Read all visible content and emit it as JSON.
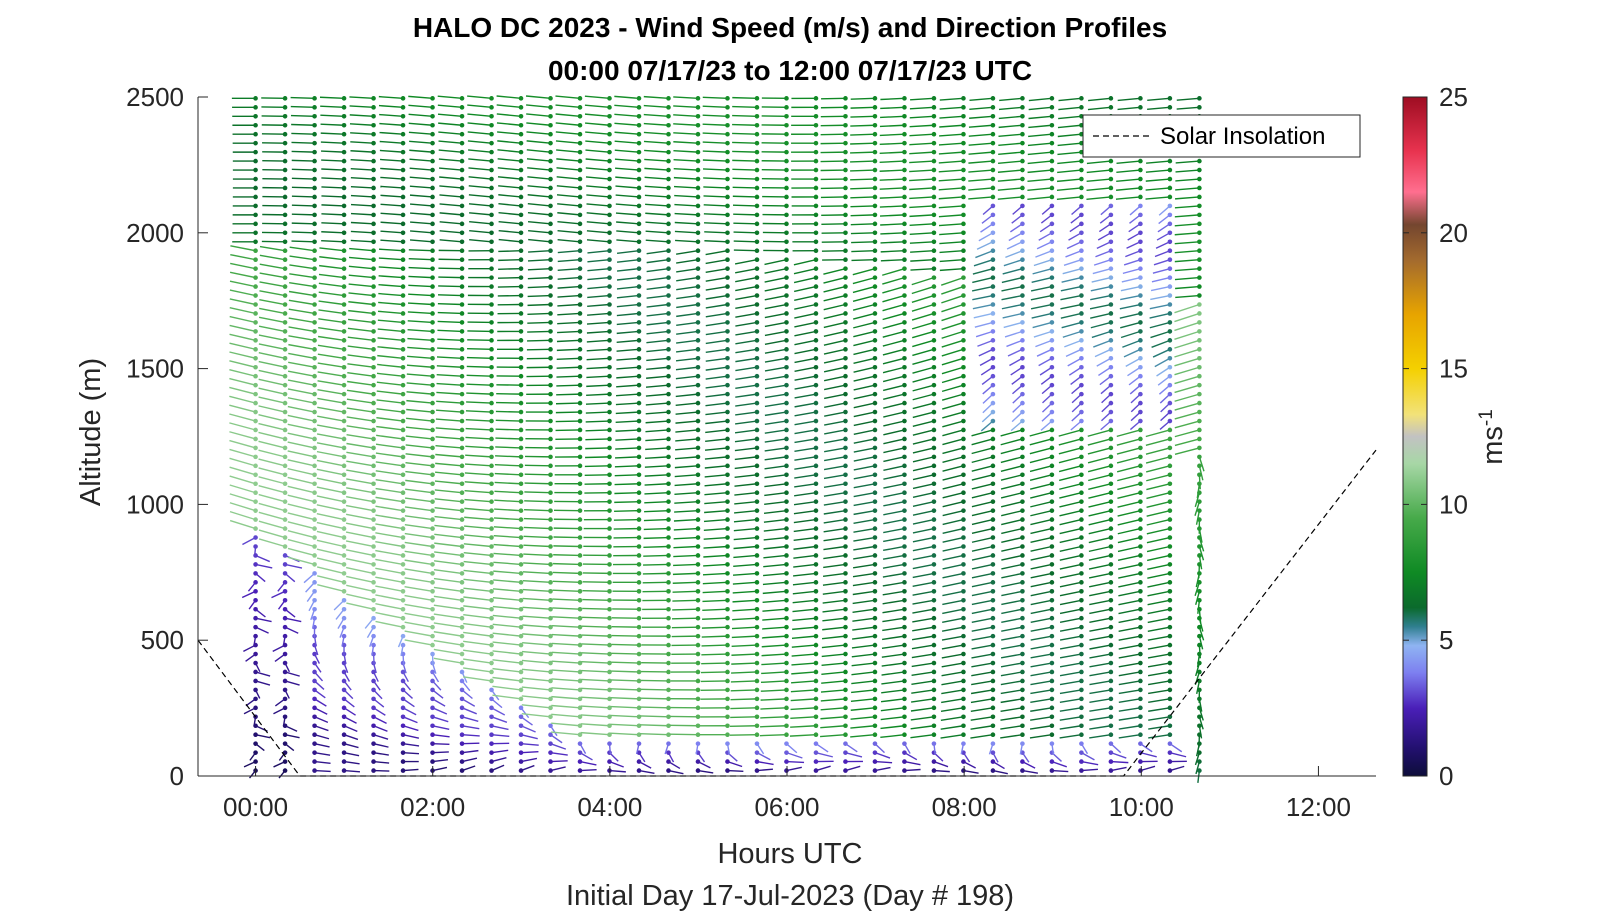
{
  "chart_data": {
    "type": "scatter",
    "title_line1": "HALO DC 2023 - Wind Speed (m/s) and Direction Profiles",
    "title_line2": "00:00 07/17/23 to 12:00 07/17/23  UTC",
    "xlabel": "Hours UTC",
    "ylabel": "Altitude (m)",
    "subtitle": "Initial Day 17-Jul-2023 (Day # 198)",
    "xlim": [
      -0.65,
      12.65
    ],
    "ylim": [
      0,
      2500
    ],
    "x_ticks": [
      {
        "value": 0,
        "label": "00:00"
      },
      {
        "value": 2,
        "label": "02:00"
      },
      {
        "value": 4,
        "label": "04:00"
      },
      {
        "value": 6,
        "label": "06:00"
      },
      {
        "value": 8,
        "label": "08:00"
      },
      {
        "value": 10,
        "label": "10:00"
      },
      {
        "value": 12,
        "label": "12:00"
      }
    ],
    "y_ticks": [
      {
        "value": 0,
        "label": "0"
      },
      {
        "value": 500,
        "label": "500"
      },
      {
        "value": 1000,
        "label": "1000"
      },
      {
        "value": 1500,
        "label": "1500"
      },
      {
        "value": 2000,
        "label": "2000"
      },
      {
        "value": 2500,
        "label": "2500"
      }
    ],
    "grid": false,
    "legend": {
      "placement": "top-right",
      "entries": [
        {
          "label": "Solar Insolation",
          "style": "dashed",
          "color": "#000000"
        }
      ]
    },
    "colorbar": {
      "label_base": "ms",
      "label_exp": "-1",
      "range": [
        0,
        25
      ],
      "ticks": [
        {
          "value": 0,
          "label": "0"
        },
        {
          "value": 5,
          "label": "5"
        },
        {
          "value": 10,
          "label": "10"
        },
        {
          "value": 15,
          "label": "15"
        },
        {
          "value": 20,
          "label": "20"
        },
        {
          "value": 25,
          "label": "25"
        }
      ],
      "stops": [
        {
          "value": 0,
          "color": "#0d0d3a"
        },
        {
          "value": 1,
          "color": "#22106e"
        },
        {
          "value": 2.5,
          "color": "#4a1fb8"
        },
        {
          "value": 3.8,
          "color": "#7d7ff0"
        },
        {
          "value": 4.8,
          "color": "#8fb4f2"
        },
        {
          "value": 5.5,
          "color": "#2f7f8f"
        },
        {
          "value": 6.2,
          "color": "#0b6a2c"
        },
        {
          "value": 7.5,
          "color": "#0f8a24"
        },
        {
          "value": 9.5,
          "color": "#47aa4a"
        },
        {
          "value": 11.5,
          "color": "#a7d7a6"
        },
        {
          "value": 12.5,
          "color": "#c2c2c2"
        },
        {
          "value": 13.3,
          "color": "#f2e27a"
        },
        {
          "value": 15,
          "color": "#f4d000"
        },
        {
          "value": 17,
          "color": "#e7a400"
        },
        {
          "value": 19,
          "color": "#a36a2e"
        },
        {
          "value": 20.3,
          "color": "#74462f"
        },
        {
          "value": 21.5,
          "color": "#ff6f8f"
        },
        {
          "value": 23,
          "color": "#e8334f"
        },
        {
          "value": 25,
          "color": "#9e0d22"
        }
      ]
    },
    "solar_insolation": {
      "x": [
        -0.65,
        0.5,
        9.8,
        12.65
      ],
      "y": [
        500,
        0,
        0,
        1200
      ]
    },
    "wind_profiles": {
      "x_start": 0,
      "x_end": 10.8,
      "x_step": 0.333,
      "alt_min": 20,
      "alt_max": 2500,
      "alt_step": 33
    }
  }
}
